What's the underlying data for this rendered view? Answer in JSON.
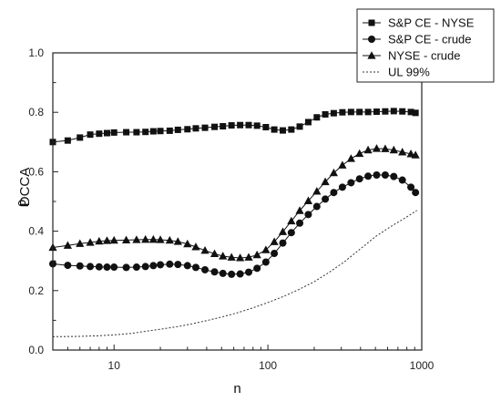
{
  "chart_data": {
    "type": "line",
    "x_scale": "log",
    "title": "",
    "xlabel": "n",
    "ylabel_main": "ρ",
    "ylabel_sub": "DCCA",
    "xlim": [
      4,
      1000
    ],
    "ylim": [
      0.0,
      1.0
    ],
    "xticks": [
      10,
      100,
      1000
    ],
    "xtick_labels": [
      "10",
      "100",
      "1000"
    ],
    "yticks": [
      0.0,
      0.2,
      0.4,
      0.6,
      0.8,
      1.0
    ],
    "ytick_labels": [
      "0.0",
      "0.2",
      "0.4",
      "0.6",
      "0.8",
      "1.0"
    ],
    "legend_position": "top-right",
    "series": [
      {
        "name": "S&P CE - NYSE",
        "marker": "square",
        "line": "solid",
        "color": "#111111",
        "x": [
          4,
          5,
          6,
          7,
          8,
          9,
          10,
          12,
          14,
          16,
          18,
          20,
          23,
          26,
          30,
          34,
          39,
          45,
          51,
          58,
          66,
          75,
          85,
          97,
          110,
          125,
          142,
          161,
          183,
          208,
          236,
          268,
          305,
          347,
          394,
          448,
          509,
          579,
          658,
          748,
          850,
          911
        ],
        "y": [
          0.7,
          0.705,
          0.715,
          0.725,
          0.728,
          0.73,
          0.732,
          0.733,
          0.733,
          0.734,
          0.736,
          0.737,
          0.738,
          0.741,
          0.743,
          0.746,
          0.748,
          0.751,
          0.753,
          0.756,
          0.757,
          0.757,
          0.755,
          0.75,
          0.742,
          0.739,
          0.742,
          0.752,
          0.767,
          0.783,
          0.793,
          0.797,
          0.8,
          0.801,
          0.801,
          0.801,
          0.802,
          0.803,
          0.804,
          0.803,
          0.801,
          0.798
        ]
      },
      {
        "name": "S&P CE - crude",
        "marker": "circle",
        "line": "solid",
        "color": "#111111",
        "x": [
          4,
          5,
          6,
          7,
          8,
          9,
          10,
          12,
          14,
          16,
          18,
          20,
          23,
          26,
          30,
          34,
          39,
          45,
          51,
          58,
          66,
          75,
          85,
          97,
          110,
          125,
          142,
          161,
          183,
          208,
          236,
          268,
          305,
          347,
          394,
          448,
          509,
          579,
          658,
          748,
          850,
          911
        ],
        "y": [
          0.29,
          0.285,
          0.283,
          0.281,
          0.28,
          0.279,
          0.279,
          0.278,
          0.279,
          0.281,
          0.284,
          0.287,
          0.289,
          0.288,
          0.284,
          0.278,
          0.27,
          0.263,
          0.258,
          0.255,
          0.256,
          0.262,
          0.275,
          0.296,
          0.325,
          0.36,
          0.395,
          0.427,
          0.456,
          0.483,
          0.508,
          0.53,
          0.548,
          0.563,
          0.576,
          0.585,
          0.589,
          0.589,
          0.584,
          0.572,
          0.548,
          0.53
        ]
      },
      {
        "name": "NYSE - crude",
        "marker": "triangle",
        "line": "solid",
        "color": "#111111",
        "x": [
          4,
          5,
          6,
          7,
          8,
          9,
          10,
          12,
          14,
          16,
          18,
          20,
          23,
          26,
          30,
          34,
          39,
          45,
          51,
          58,
          66,
          75,
          85,
          97,
          110,
          125,
          142,
          161,
          183,
          208,
          236,
          268,
          305,
          347,
          394,
          448,
          509,
          579,
          658,
          748,
          850,
          911
        ],
        "y": [
          0.345,
          0.352,
          0.358,
          0.362,
          0.366,
          0.368,
          0.369,
          0.37,
          0.371,
          0.372,
          0.372,
          0.371,
          0.369,
          0.365,
          0.357,
          0.347,
          0.335,
          0.324,
          0.316,
          0.312,
          0.31,
          0.312,
          0.32,
          0.337,
          0.364,
          0.398,
          0.434,
          0.469,
          0.502,
          0.534,
          0.566,
          0.596,
          0.622,
          0.644,
          0.661,
          0.673,
          0.678,
          0.677,
          0.673,
          0.666,
          0.66,
          0.656
        ]
      },
      {
        "name": "UL 99%",
        "marker": "none",
        "line": "dotted",
        "color": "#333333",
        "x": [
          4,
          6,
          8,
          10,
          13,
          16,
          20,
          26,
          32,
          40,
          50,
          63,
          80,
          100,
          126,
          158,
          200,
          251,
          316,
          398,
          501,
          631,
          794,
          930
        ],
        "y": [
          0.045,
          0.046,
          0.048,
          0.051,
          0.056,
          0.063,
          0.07,
          0.079,
          0.088,
          0.099,
          0.111,
          0.125,
          0.142,
          0.16,
          0.18,
          0.203,
          0.23,
          0.262,
          0.298,
          0.34,
          0.382,
          0.416,
          0.447,
          0.47
        ]
      }
    ]
  }
}
